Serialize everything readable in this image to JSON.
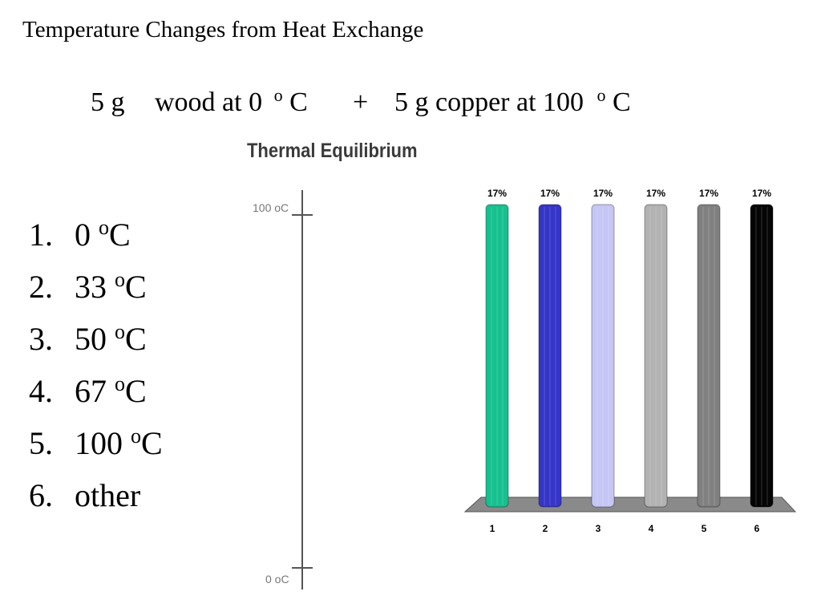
{
  "title": "Temperature Changes from Heat Exchange",
  "problem": [
    "5 g",
    "wood at 0",
    "o",
    "C",
    "+",
    "5 g copper at 100",
    "o",
    "C"
  ],
  "options": [
    {
      "label": "1.",
      "text": "0",
      "sup": "o",
      "unit": "C"
    },
    {
      "label": "2.",
      "text": "33",
      "sup": "o",
      "unit": "C"
    },
    {
      "label": "3.",
      "text": "50",
      "sup": "o",
      "unit": "C"
    },
    {
      "label": "4.",
      "text": "67",
      "sup": "o",
      "unit": "C"
    },
    {
      "label": "5.",
      "text": "100",
      "sup": "o",
      "unit": "C"
    },
    {
      "label": "6.",
      "text": "other"
    }
  ],
  "thermometer": {
    "title": "Thermal Equilibrium",
    "top_label": "100 oC",
    "bottom_label": "0 oC"
  },
  "chart_data": {
    "type": "bar",
    "categories": [
      "1",
      "2",
      "3",
      "4",
      "5",
      "6"
    ],
    "values": [
      17,
      17,
      17,
      17,
      17,
      17
    ],
    "value_labels": [
      "17%",
      "17%",
      "17%",
      "17%",
      "17%",
      "17%"
    ],
    "colors": [
      "#17c08f",
      "#3535c8",
      "#c6c6f4",
      "#b2b2b2",
      "#808080",
      "#050505"
    ]
  }
}
